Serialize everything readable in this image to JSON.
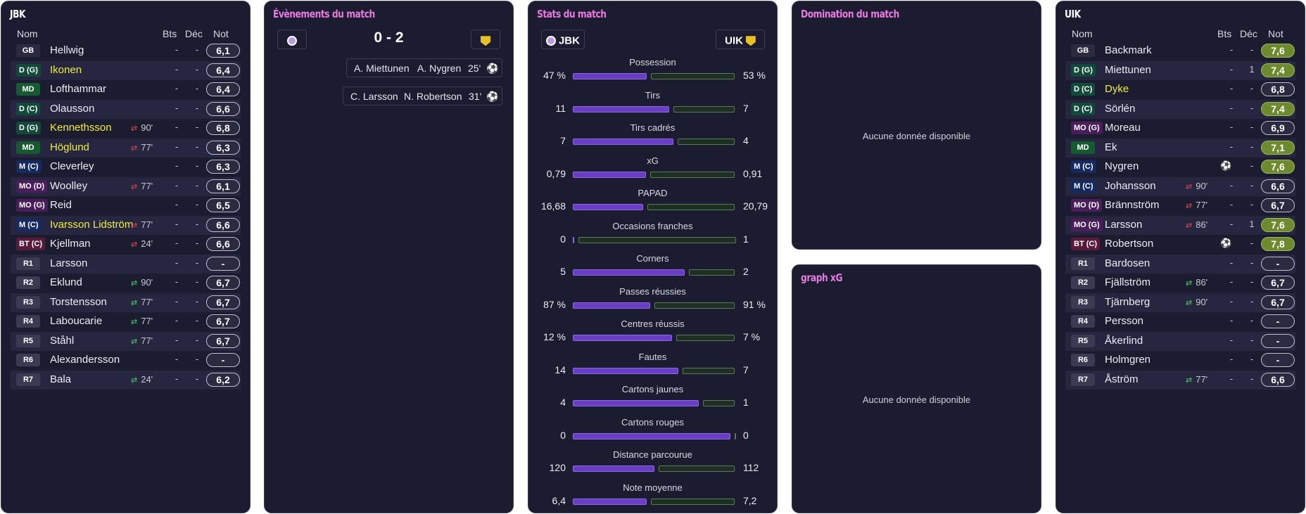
{
  "home": {
    "title": "JBK",
    "headers": {
      "name": "Nom",
      "goals": "Bts",
      "dec": "Déc",
      "note": "Not"
    },
    "players": [
      {
        "pos": "GB",
        "name": "Hellwig",
        "goals": "-",
        "dec": "-",
        "note": "6,1",
        "color": "#2a2a40",
        "hl": false,
        "sub": "",
        "sub_min": ""
      },
      {
        "pos": "D (G)",
        "name": "Ikonen",
        "goals": "-",
        "dec": "-",
        "note": "6,4",
        "color": "#124a3a",
        "hl": true,
        "sub": "",
        "sub_min": ""
      },
      {
        "pos": "MD",
        "name": "Lofthammar",
        "goals": "-",
        "dec": "-",
        "note": "6,4",
        "color": "#155a30",
        "hl": false,
        "sub": "",
        "sub_min": ""
      },
      {
        "pos": "D (C)",
        "name": "Olausson",
        "goals": "-",
        "dec": "-",
        "note": "6,6",
        "color": "#124a3a",
        "hl": false,
        "sub": "",
        "sub_min": ""
      },
      {
        "pos": "D (G)",
        "name": "Kennethsson",
        "goals": "-",
        "dec": "-",
        "note": "6,8",
        "color": "#124a3a",
        "hl": true,
        "sub": "out",
        "sub_min": "90'"
      },
      {
        "pos": "MD",
        "name": "Höglund",
        "goals": "-",
        "dec": "-",
        "note": "6,3",
        "color": "#155a30",
        "hl": true,
        "sub": "out",
        "sub_min": "77'"
      },
      {
        "pos": "M (C)",
        "name": "Cleverley",
        "goals": "-",
        "dec": "-",
        "note": "6,3",
        "color": "#152a60",
        "hl": false,
        "sub": "",
        "sub_min": ""
      },
      {
        "pos": "MO (D)",
        "name": "Woolley",
        "goals": "-",
        "dec": "-",
        "note": "6,1",
        "color": "#4a1e5a",
        "hl": false,
        "sub": "out",
        "sub_min": "77'"
      },
      {
        "pos": "MO (G)",
        "name": "Reid",
        "goals": "-",
        "dec": "-",
        "note": "6,5",
        "color": "#4a1e5a",
        "hl": false,
        "sub": "",
        "sub_min": ""
      },
      {
        "pos": "M (C)",
        "name": "Ivarsson Lidström",
        "goals": "-",
        "dec": "-",
        "note": "6,6",
        "color": "#152a60",
        "hl": true,
        "sub": "out",
        "sub_min": "77'"
      },
      {
        "pos": "BT (C)",
        "name": "Kjellman",
        "goals": "-",
        "dec": "-",
        "note": "6,6",
        "color": "#5a1a3a",
        "hl": false,
        "sub": "out",
        "sub_min": "24'"
      },
      {
        "pos": "R1",
        "name": "Larsson",
        "goals": "-",
        "dec": "-",
        "note": "-",
        "color": "#3a3a52",
        "hl": false,
        "sub": "",
        "sub_min": ""
      },
      {
        "pos": "R2",
        "name": "Eklund",
        "goals": "-",
        "dec": "-",
        "note": "6,7",
        "color": "#3a3a52",
        "hl": false,
        "sub": "in",
        "sub_min": "90'"
      },
      {
        "pos": "R3",
        "name": "Torstensson",
        "goals": "-",
        "dec": "-",
        "note": "6,7",
        "color": "#3a3a52",
        "hl": false,
        "sub": "in",
        "sub_min": "77'"
      },
      {
        "pos": "R4",
        "name": "Laboucarie",
        "goals": "-",
        "dec": "-",
        "note": "6,7",
        "color": "#3a3a52",
        "hl": false,
        "sub": "in",
        "sub_min": "77'"
      },
      {
        "pos": "R5",
        "name": "Ståhl",
        "goals": "-",
        "dec": "-",
        "note": "6,7",
        "color": "#3a3a52",
        "hl": false,
        "sub": "in",
        "sub_min": "77'"
      },
      {
        "pos": "R6",
        "name": "Alexandersson",
        "goals": "-",
        "dec": "-",
        "note": "-",
        "color": "#3a3a52",
        "hl": false,
        "sub": "",
        "sub_min": ""
      },
      {
        "pos": "R7",
        "name": "Bala",
        "goals": "-",
        "dec": "-",
        "note": "6,2",
        "color": "#3a3a52",
        "hl": false,
        "sub": "in",
        "sub_min": "24'"
      }
    ]
  },
  "away": {
    "title": "UIK",
    "headers": {
      "name": "Nom",
      "goals": "Bts",
      "dec": "Déc",
      "note": "Not"
    },
    "players": [
      {
        "pos": "GB",
        "name": "Backmark",
        "goals": "-",
        "dec": "-",
        "note": "7,6",
        "color": "#2a2a40",
        "hl": false,
        "sub": "",
        "sub_min": "",
        "goal_icon": false,
        "green": true
      },
      {
        "pos": "D (G)",
        "name": "Miettunen",
        "goals": "-",
        "dec": "1",
        "note": "7,4",
        "color": "#124a3a",
        "hl": false,
        "sub": "",
        "sub_min": "",
        "goal_icon": false,
        "green": true
      },
      {
        "pos": "D (C)",
        "name": "Dyke",
        "goals": "-",
        "dec": "-",
        "note": "6,8",
        "color": "#124a3a",
        "hl": true,
        "sub": "",
        "sub_min": "",
        "goal_icon": false,
        "green": false
      },
      {
        "pos": "D (C)",
        "name": "Sörlén",
        "goals": "-",
        "dec": "-",
        "note": "7,4",
        "color": "#124a3a",
        "hl": false,
        "sub": "",
        "sub_min": "",
        "goal_icon": false,
        "green": true
      },
      {
        "pos": "MO (G)",
        "name": "Moreau",
        "goals": "-",
        "dec": "-",
        "note": "6,9",
        "color": "#4a1e5a",
        "hl": false,
        "sub": "",
        "sub_min": "",
        "goal_icon": false,
        "green": false
      },
      {
        "pos": "MD",
        "name": "Ek",
        "goals": "-",
        "dec": "-",
        "note": "7,1",
        "color": "#155a30",
        "hl": false,
        "sub": "",
        "sub_min": "",
        "goal_icon": false,
        "green": true
      },
      {
        "pos": "M (C)",
        "name": "Nygren",
        "goals": "",
        "dec": "-",
        "note": "7,6",
        "color": "#152a60",
        "hl": false,
        "sub": "",
        "sub_min": "",
        "goal_icon": true,
        "green": true
      },
      {
        "pos": "M (C)",
        "name": "Johansson",
        "goals": "-",
        "dec": "-",
        "note": "6,6",
        "color": "#152a60",
        "hl": false,
        "sub": "out",
        "sub_min": "90'",
        "goal_icon": false,
        "green": false
      },
      {
        "pos": "MO (D)",
        "name": "Brännström",
        "goals": "-",
        "dec": "-",
        "note": "6,7",
        "color": "#4a1e5a",
        "hl": false,
        "sub": "out",
        "sub_min": "77'",
        "goal_icon": false,
        "green": false
      },
      {
        "pos": "MO (G)",
        "name": "Larsson",
        "goals": "-",
        "dec": "1",
        "note": "7,6",
        "color": "#4a1e5a",
        "hl": false,
        "sub": "out",
        "sub_min": "86'",
        "goal_icon": false,
        "green": true
      },
      {
        "pos": "BT (C)",
        "name": "Robertson",
        "goals": "",
        "dec": "-",
        "note": "7,8",
        "color": "#5a1a3a",
        "hl": false,
        "sub": "",
        "sub_min": "",
        "goal_icon": true,
        "green": true
      },
      {
        "pos": "R1",
        "name": "Bardosen",
        "goals": "-",
        "dec": "-",
        "note": "-",
        "color": "#3a3a52",
        "hl": false,
        "sub": "",
        "sub_min": "",
        "goal_icon": false,
        "green": false
      },
      {
        "pos": "R2",
        "name": "Fjällström",
        "goals": "-",
        "dec": "-",
        "note": "6,7",
        "color": "#3a3a52",
        "hl": false,
        "sub": "in",
        "sub_min": "86'",
        "goal_icon": false,
        "green": false
      },
      {
        "pos": "R3",
        "name": "Tjärnberg",
        "goals": "-",
        "dec": "-",
        "note": "6,7",
        "color": "#3a3a52",
        "hl": false,
        "sub": "in",
        "sub_min": "90'",
        "goal_icon": false,
        "green": false
      },
      {
        "pos": "R4",
        "name": "Persson",
        "goals": "-",
        "dec": "-",
        "note": "-",
        "color": "#3a3a52",
        "hl": false,
        "sub": "",
        "sub_min": "",
        "goal_icon": false,
        "green": false
      },
      {
        "pos": "R5",
        "name": "Åkerlind",
        "goals": "-",
        "dec": "-",
        "note": "-",
        "color": "#3a3a52",
        "hl": false,
        "sub": "",
        "sub_min": "",
        "goal_icon": false,
        "green": false
      },
      {
        "pos": "R6",
        "name": "Holmgren",
        "goals": "-",
        "dec": "-",
        "note": "-",
        "color": "#3a3a52",
        "hl": false,
        "sub": "",
        "sub_min": "",
        "goal_icon": false,
        "green": false
      },
      {
        "pos": "R7",
        "name": "Åström",
        "goals": "-",
        "dec": "-",
        "note": "6,6",
        "color": "#3a3a52",
        "hl": false,
        "sub": "in",
        "sub_min": "77'",
        "goal_icon": false,
        "green": false
      }
    ]
  },
  "events": {
    "title": "Évènements du match",
    "score": "0 - 2",
    "items": [
      {
        "assist": "A. Miettunen",
        "scorer": "A. Nygren",
        "minute": "25'"
      },
      {
        "assist": "C. Larsson",
        "scorer": "N. Robertson",
        "minute": "31'"
      }
    ]
  },
  "stats": {
    "title": "Stats du match",
    "home_team": "JBK",
    "away_team": "UIK",
    "rows": [
      {
        "label": "Possession",
        "home": "47 %",
        "away": "53 %",
        "home_frac": 0.47
      },
      {
        "label": "Tirs",
        "home": "11",
        "away": "7",
        "home_frac": 0.61
      },
      {
        "label": "Tirs cadrés",
        "home": "7",
        "away": "4",
        "home_frac": 0.64
      },
      {
        "label": "xG",
        "home": "0,79",
        "away": "0,91",
        "home_frac": 0.465
      },
      {
        "label": "PAPAD",
        "home": "16,68",
        "away": "20,79",
        "home_frac": 0.445
      },
      {
        "label": "Occasions franches",
        "home": "0",
        "away": "1",
        "home_frac": 0.0
      },
      {
        "label": "Corners",
        "home": "5",
        "away": "2",
        "home_frac": 0.71
      },
      {
        "label": "Passes réussies",
        "home": "87 %",
        "away": "91 %",
        "home_frac": 0.49
      },
      {
        "label": "Centres réussis",
        "home": "12 %",
        "away": "7 %",
        "home_frac": 0.63
      },
      {
        "label": "Fautes",
        "home": "14",
        "away": "7",
        "home_frac": 0.67
      },
      {
        "label": "Cartons jaunes",
        "home": "4",
        "away": "1",
        "home_frac": 0.8
      },
      {
        "label": "Cartons rouges",
        "home": "0",
        "away": "0",
        "home_frac": 1.0
      },
      {
        "label": "Distance parcourue",
        "home": "120",
        "away": "112",
        "home_frac": 0.52
      },
      {
        "label": "Note moyenne",
        "home": "6,4",
        "away": "7,2",
        "home_frac": 0.47
      }
    ]
  },
  "domination": {
    "title": "Domination du match",
    "empty": "Aucune donnée disponible"
  },
  "xg_graph": {
    "title": "graph xG",
    "empty": "Aucune donnée disponible"
  },
  "colors": {
    "panel": "#1c1c30",
    "accent_pink": "#e87ae0",
    "bar_home": "#6a3dc8",
    "highlight_name": "#f0ec3a",
    "note_green": "#6e8a2e"
  }
}
